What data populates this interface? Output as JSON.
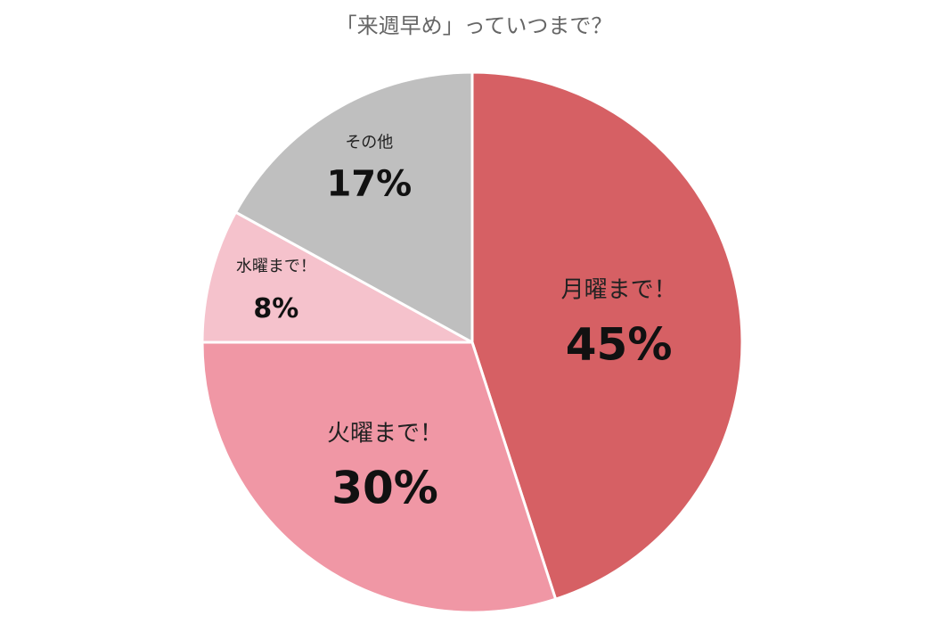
{
  "chart_data": {
    "type": "pie",
    "title": "「来週早め」っていつまで？",
    "categories": [
      "月曜まで！",
      "火曜まで！",
      "水曜まで！",
      "その他"
    ],
    "values": [
      45,
      30,
      8,
      17
    ],
    "value_labels": [
      "45%",
      "30%",
      "8%",
      "17%"
    ],
    "colors": [
      "#d66064",
      "#f097a5",
      "#f5c2cc",
      "#bfbfbf"
    ]
  }
}
